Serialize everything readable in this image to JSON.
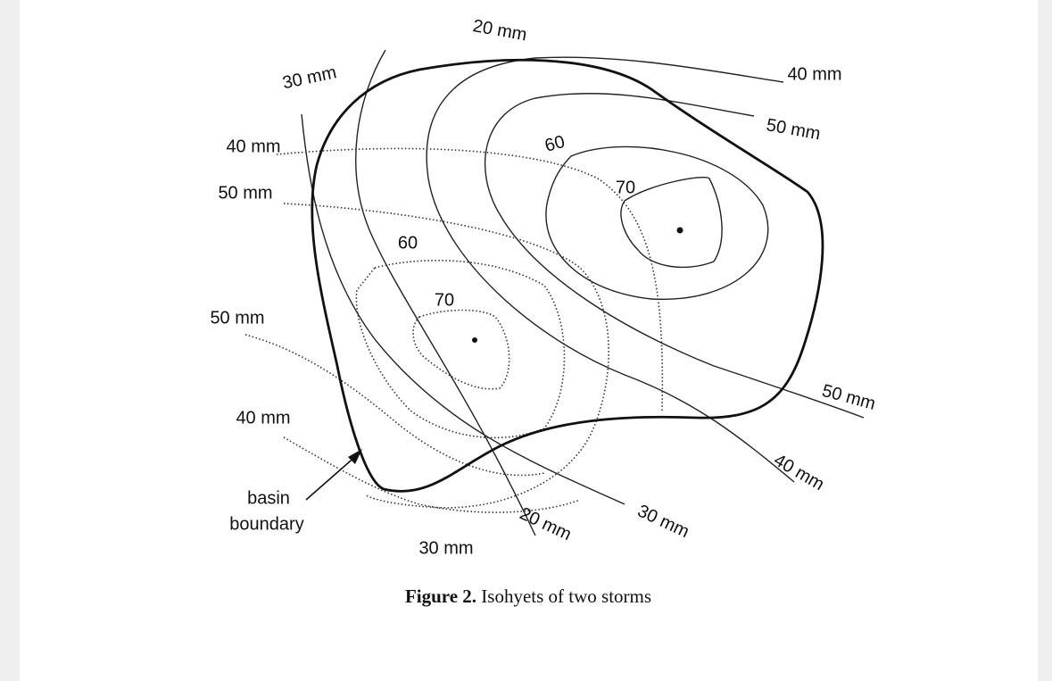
{
  "labels": [
    "20 mm",
    "30 mm",
    "40 mm",
    "50 mm",
    "40 mm",
    "50 mm",
    "60",
    "70",
    "60",
    "70",
    "50 mm",
    "50 mm",
    "40 mm",
    "40 mm",
    "basin",
    "boundary",
    "20 mm",
    "30 mm",
    "30 mm"
  ],
  "caption": {
    "number": "Figure 2.",
    "text": "Isohyets of two storms"
  }
}
